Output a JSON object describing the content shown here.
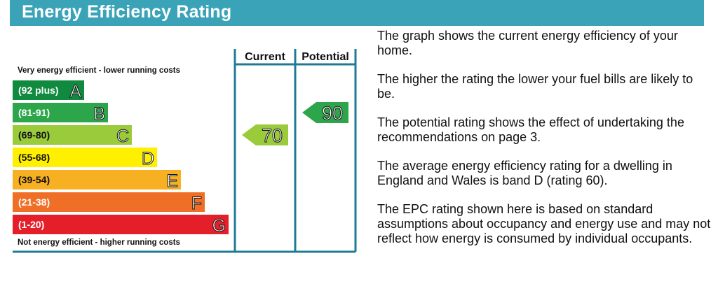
{
  "header": {
    "title": "Energy Efficiency Rating"
  },
  "chart_data": {
    "type": "bar",
    "top_label": "Very energy efficient - lower running costs",
    "bottom_label": "Not energy efficient - higher running costs",
    "columns": [
      "Current",
      "Potential"
    ],
    "bands": [
      {
        "letter": "A",
        "range": "(92 plus)",
        "color": "#0f8a3e"
      },
      {
        "letter": "B",
        "range": "(81-91)",
        "color": "#2da64b"
      },
      {
        "letter": "C",
        "range": "(69-80)",
        "color": "#9acb3b"
      },
      {
        "letter": "D",
        "range": "(55-68)",
        "color": "#fff000"
      },
      {
        "letter": "E",
        "range": "(39-54)",
        "color": "#f7b022"
      },
      {
        "letter": "F",
        "range": "(21-38)",
        "color": "#ee6f25"
      },
      {
        "letter": "G",
        "range": "(1-20)",
        "color": "#e41f2a"
      }
    ],
    "current": {
      "value": 70,
      "band": "C",
      "color": "#9acb3b"
    },
    "potential": {
      "value": 90,
      "band": "B",
      "color": "#2da64b"
    }
  },
  "description": [
    "The graph shows the current energy efficiency of your home.",
    "The higher the rating the lower your fuel bills are likely to be.",
    "The potential rating shows the effect of undertaking the recommendations on page 3.",
    "The average energy efficiency rating for a dwelling in England and Wales is band D (rating 60).",
    "The EPC rating shown here is based on standard assumptions about occupancy and energy use and may not reflect how energy is consumed by individual occupants."
  ]
}
